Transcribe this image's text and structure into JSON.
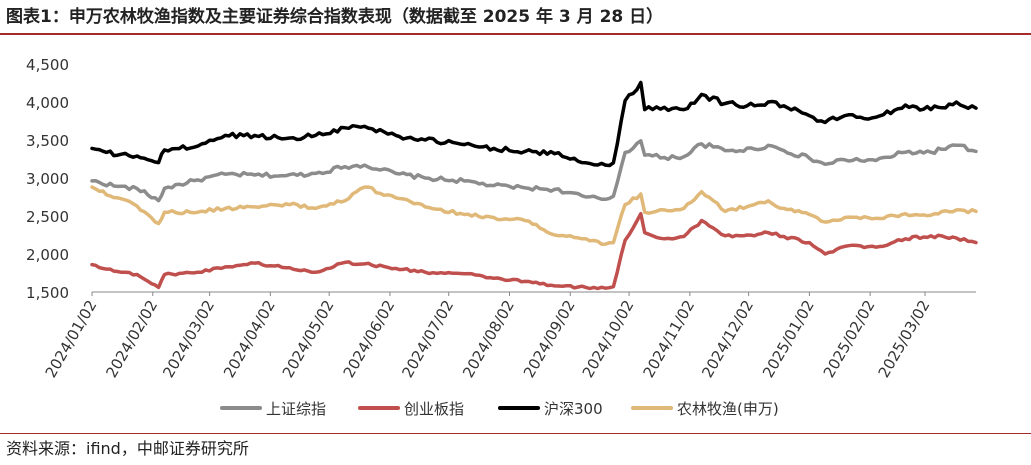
{
  "header": {
    "title": "图表1：申万农林牧渔指数及主要证券综合指数表现（数据截至 2025 年 3 月 28 日）"
  },
  "footer": {
    "source": "资料来源：ifind，中邮证券研究所"
  },
  "colors": {
    "accent_rule": "#a52a2a"
  },
  "chart_data": {
    "type": "line",
    "ylim": [
      1500,
      4500
    ],
    "yticks": [
      1500,
      2000,
      2500,
      3000,
      3500,
      4000,
      4500
    ],
    "ytick_labels": [
      "1,500",
      "2,000",
      "2,500",
      "3,000",
      "3,500",
      "4,000",
      "4,500"
    ],
    "x_start": "2024-01-02",
    "x_end": "2025-03-28",
    "xtick_dates": [
      "2024-01-02",
      "2024-02-02",
      "2024-03-02",
      "2024-04-02",
      "2024-05-02",
      "2024-06-02",
      "2024-07-02",
      "2024-08-02",
      "2024-09-02",
      "2024-10-02",
      "2024-11-02",
      "2024-12-02",
      "2025-01-02",
      "2025-02-02",
      "2025-03-02"
    ],
    "xtick_labels": [
      "2024/01/02",
      "2024/02/02",
      "2024/03/02",
      "2024/04/02",
      "2024/05/02",
      "2024/06/02",
      "2024/07/02",
      "2024/08/02",
      "2024/09/02",
      "2024/10/02",
      "2024/11/02",
      "2024/12/02",
      "2025/01/02",
      "2025/02/02",
      "2025/03/02"
    ],
    "legend_position": "bottom",
    "grid": false,
    "series": [
      {
        "name": "上证综指",
        "color": "#8c8c8c",
        "points": [
          [
            "2024-01-02",
            2962
          ],
          [
            "2024-01-15",
            2890
          ],
          [
            "2024-01-25",
            2860
          ],
          [
            "2024-02-05",
            2702
          ],
          [
            "2024-02-08",
            2865
          ],
          [
            "2024-02-25",
            2975
          ],
          [
            "2024-03-10",
            3050
          ],
          [
            "2024-03-25",
            3040
          ],
          [
            "2024-04-10",
            3030
          ],
          [
            "2024-04-25",
            3060
          ],
          [
            "2024-05-10",
            3150
          ],
          [
            "2024-05-20",
            3170
          ],
          [
            "2024-06-05",
            3060
          ],
          [
            "2024-06-20",
            3000
          ],
          [
            "2024-07-10",
            2960
          ],
          [
            "2024-07-25",
            2900
          ],
          [
            "2024-08-10",
            2870
          ],
          [
            "2024-08-25",
            2850
          ],
          [
            "2024-09-10",
            2750
          ],
          [
            "2024-09-20",
            2720
          ],
          [
            "2024-09-24",
            2760
          ],
          [
            "2024-09-30",
            3336
          ],
          [
            "2024-10-08",
            3490
          ],
          [
            "2024-10-10",
            3300
          ],
          [
            "2024-10-20",
            3270
          ],
          [
            "2024-10-30",
            3280
          ],
          [
            "2024-11-08",
            3450
          ],
          [
            "2024-11-20",
            3360
          ],
          [
            "2024-12-05",
            3380
          ],
          [
            "2024-12-12",
            3430
          ],
          [
            "2024-12-20",
            3360
          ],
          [
            "2025-01-02",
            3260
          ],
          [
            "2025-01-10",
            3180
          ],
          [
            "2025-01-20",
            3240
          ],
          [
            "2025-02-05",
            3230
          ],
          [
            "2025-02-20",
            3340
          ],
          [
            "2025-03-05",
            3340
          ],
          [
            "2025-03-18",
            3430
          ],
          [
            "2025-03-28",
            3350
          ]
        ]
      },
      {
        "name": "创业板指",
        "color": "#c0504d",
        "points": [
          [
            "2024-01-02",
            1860
          ],
          [
            "2024-01-15",
            1770
          ],
          [
            "2024-01-25",
            1730
          ],
          [
            "2024-02-05",
            1560
          ],
          [
            "2024-02-08",
            1730
          ],
          [
            "2024-02-25",
            1760
          ],
          [
            "2024-03-10",
            1830
          ],
          [
            "2024-03-25",
            1880
          ],
          [
            "2024-04-10",
            1820
          ],
          [
            "2024-04-25",
            1760
          ],
          [
            "2024-05-10",
            1890
          ],
          [
            "2024-05-20",
            1870
          ],
          [
            "2024-06-05",
            1810
          ],
          [
            "2024-06-20",
            1760
          ],
          [
            "2024-07-10",
            1740
          ],
          [
            "2024-07-25",
            1680
          ],
          [
            "2024-08-10",
            1640
          ],
          [
            "2024-08-25",
            1580
          ],
          [
            "2024-09-10",
            1560
          ],
          [
            "2024-09-20",
            1550
          ],
          [
            "2024-09-24",
            1570
          ],
          [
            "2024-09-30",
            2180
          ],
          [
            "2024-10-08",
            2530
          ],
          [
            "2024-10-10",
            2280
          ],
          [
            "2024-10-20",
            2200
          ],
          [
            "2024-10-30",
            2230
          ],
          [
            "2024-11-08",
            2440
          ],
          [
            "2024-11-20",
            2240
          ],
          [
            "2024-12-05",
            2240
          ],
          [
            "2024-12-12",
            2280
          ],
          [
            "2024-12-20",
            2230
          ],
          [
            "2025-01-02",
            2150
          ],
          [
            "2025-01-10",
            2000
          ],
          [
            "2025-01-20",
            2100
          ],
          [
            "2025-02-05",
            2090
          ],
          [
            "2025-02-20",
            2200
          ],
          [
            "2025-03-05",
            2240
          ],
          [
            "2025-03-18",
            2210
          ],
          [
            "2025-03-28",
            2150
          ]
        ]
      },
      {
        "name": "沪深300",
        "color": "#000000",
        "points": [
          [
            "2024-01-02",
            3390
          ],
          [
            "2024-01-15",
            3300
          ],
          [
            "2024-01-25",
            3290
          ],
          [
            "2024-02-05",
            3203
          ],
          [
            "2024-02-08",
            3370
          ],
          [
            "2024-02-25",
            3420
          ],
          [
            "2024-03-10",
            3560
          ],
          [
            "2024-03-25",
            3560
          ],
          [
            "2024-04-10",
            3520
          ],
          [
            "2024-04-25",
            3560
          ],
          [
            "2024-05-10",
            3660
          ],
          [
            "2024-05-20",
            3680
          ],
          [
            "2024-06-05",
            3560
          ],
          [
            "2024-06-20",
            3500
          ],
          [
            "2024-07-10",
            3440
          ],
          [
            "2024-07-25",
            3390
          ],
          [
            "2024-08-10",
            3350
          ],
          [
            "2024-08-25",
            3320
          ],
          [
            "2024-09-10",
            3200
          ],
          [
            "2024-09-20",
            3170
          ],
          [
            "2024-09-24",
            3200
          ],
          [
            "2024-09-30",
            4017
          ],
          [
            "2024-10-08",
            4256
          ],
          [
            "2024-10-10",
            3900
          ],
          [
            "2024-10-20",
            3930
          ],
          [
            "2024-10-30",
            3900
          ],
          [
            "2024-11-08",
            4100
          ],
          [
            "2024-11-20",
            3980
          ],
          [
            "2024-12-05",
            3950
          ],
          [
            "2024-12-12",
            4000
          ],
          [
            "2024-12-20",
            3950
          ],
          [
            "2025-01-02",
            3820
          ],
          [
            "2025-01-10",
            3730
          ],
          [
            "2025-01-20",
            3820
          ],
          [
            "2025-02-05",
            3800
          ],
          [
            "2025-02-20",
            3960
          ],
          [
            "2025-03-05",
            3900
          ],
          [
            "2025-03-18",
            4000
          ],
          [
            "2025-03-28",
            3920
          ]
        ]
      },
      {
        "name": "农林牧渔(申万)",
        "color": "#e0b878",
        "points": [
          [
            "2024-01-02",
            2880
          ],
          [
            "2024-01-15",
            2740
          ],
          [
            "2024-01-25",
            2630
          ],
          [
            "2024-02-05",
            2400
          ],
          [
            "2024-02-08",
            2550
          ],
          [
            "2024-02-25",
            2550
          ],
          [
            "2024-03-10",
            2600
          ],
          [
            "2024-03-25",
            2620
          ],
          [
            "2024-04-10",
            2660
          ],
          [
            "2024-04-25",
            2600
          ],
          [
            "2024-05-10",
            2700
          ],
          [
            "2024-05-20",
            2880
          ],
          [
            "2024-06-05",
            2740
          ],
          [
            "2024-06-20",
            2620
          ],
          [
            "2024-07-10",
            2520
          ],
          [
            "2024-07-25",
            2480
          ],
          [
            "2024-08-10",
            2440
          ],
          [
            "2024-08-25",
            2250
          ],
          [
            "2024-09-10",
            2200
          ],
          [
            "2024-09-20",
            2130
          ],
          [
            "2024-09-24",
            2150
          ],
          [
            "2024-09-30",
            2650
          ],
          [
            "2024-10-08",
            2790
          ],
          [
            "2024-10-10",
            2550
          ],
          [
            "2024-10-20",
            2580
          ],
          [
            "2024-10-30",
            2600
          ],
          [
            "2024-11-08",
            2820
          ],
          [
            "2024-11-20",
            2560
          ],
          [
            "2024-12-05",
            2650
          ],
          [
            "2024-12-12",
            2700
          ],
          [
            "2024-12-20",
            2600
          ],
          [
            "2025-01-02",
            2520
          ],
          [
            "2025-01-10",
            2420
          ],
          [
            "2025-01-20",
            2480
          ],
          [
            "2025-02-05",
            2470
          ],
          [
            "2025-02-20",
            2530
          ],
          [
            "2025-03-05",
            2510
          ],
          [
            "2025-03-18",
            2580
          ],
          [
            "2025-03-28",
            2560
          ]
        ]
      }
    ]
  }
}
